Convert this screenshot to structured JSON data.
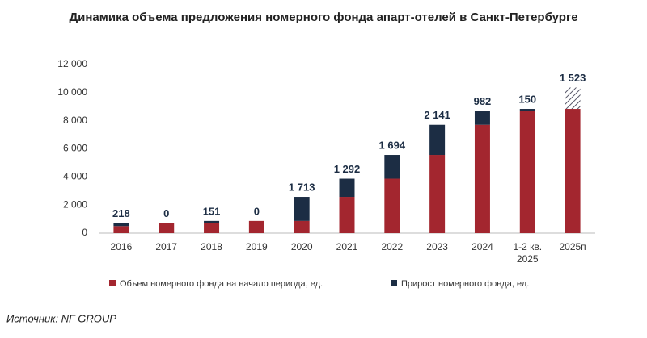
{
  "chart_data": {
    "type": "stacked_bar",
    "title": "Динамика объема предложения номерного фонда апарт-отелей в Санкт-Петербурге",
    "source": "Источник: NF GROUP",
    "categories": [
      "2016",
      "2017",
      "2018",
      "2019",
      "2020",
      "2021",
      "2022",
      "2023",
      "2024",
      "1-2 кв.\n2025",
      "2025п"
    ],
    "series": [
      {
        "name": "Объем номерного фонда на начало периода, ед.",
        "color": "#a3262f",
        "values": [
          500,
          718,
          718,
          869,
          869,
          2582,
          3874,
          5568,
          7709,
          8691,
          8841
        ]
      },
      {
        "name": "Прирост номерного фонда, ед.",
        "color": "#1c2d44",
        "values": [
          218,
          0,
          151,
          0,
          1713,
          1292,
          1694,
          2141,
          982,
          150,
          1523
        ],
        "value_labels": [
          "218",
          "0",
          "151",
          "0",
          "1 713",
          "1 292",
          "1 694",
          "2 141",
          "982",
          "150",
          "1 523"
        ],
        "hatched": [
          false,
          false,
          false,
          false,
          false,
          false,
          false,
          false,
          false,
          false,
          true
        ]
      }
    ],
    "ylim": [
      0,
      12000
    ],
    "yticks": [
      0,
      {
        "value": 2000,
        "label": "2 000"
      },
      {
        "value": 4000,
        "label": "4 000"
      },
      {
        "value": 6000,
        "label": "6 000"
      },
      {
        "value": 8000,
        "label": "8 000"
      },
      {
        "value": 10000,
        "label": "10 000"
      },
      {
        "value": 12000,
        "label": "12 000"
      }
    ],
    "grid": false,
    "legend": "bottom"
  }
}
